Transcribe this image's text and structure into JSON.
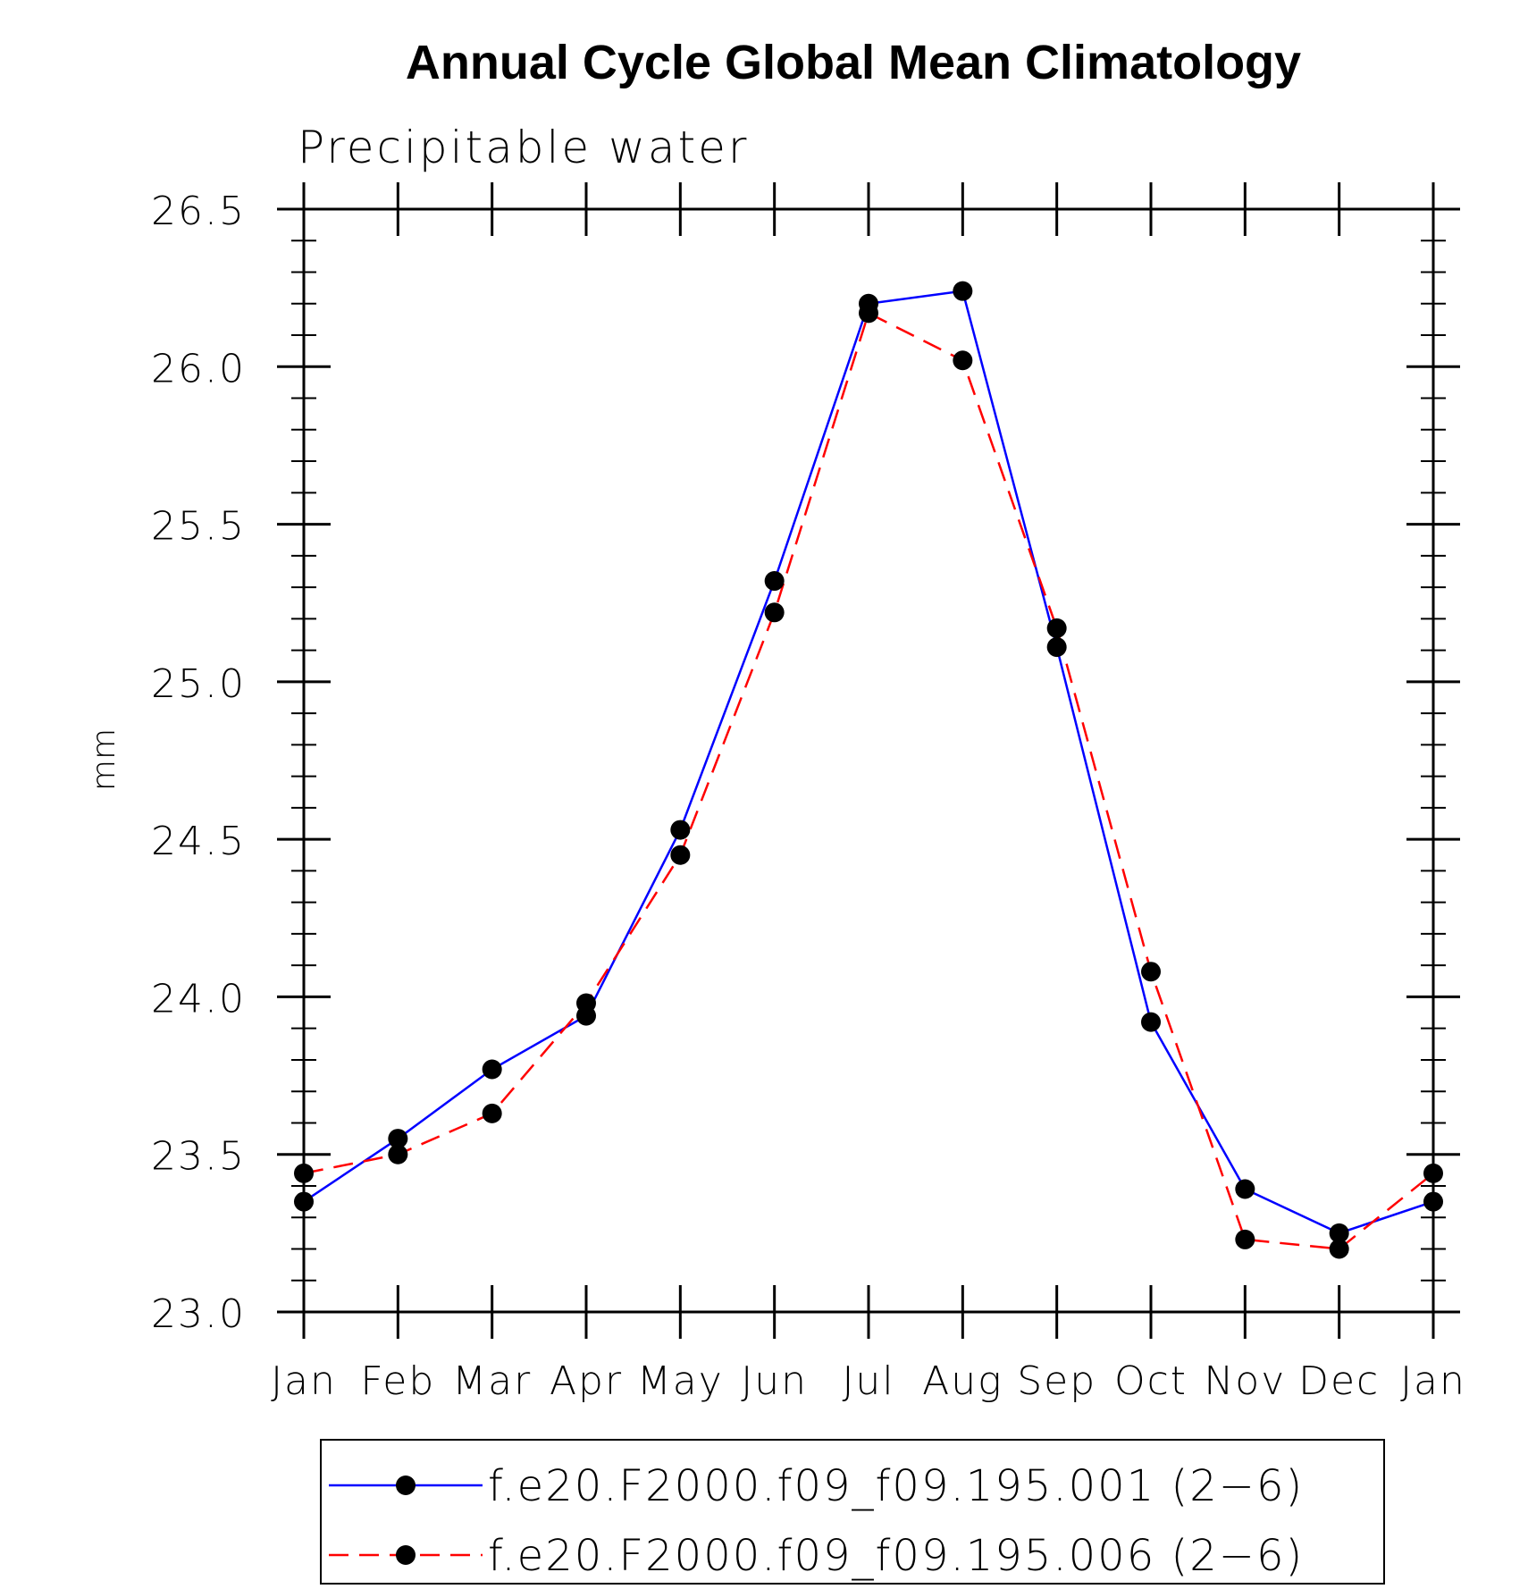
{
  "chart_data": {
    "type": "line",
    "title": "Annual Cycle Global Mean Climatology",
    "subtitle": "Precipitable water",
    "ylabel": "mm",
    "xlabel": "",
    "categories": [
      "Jan",
      "Feb",
      "Mar",
      "Apr",
      "May",
      "Jun",
      "Jul",
      "Aug",
      "Sep",
      "Oct",
      "Nov",
      "Dec",
      "Jan"
    ],
    "ylim": [
      23.0,
      26.5
    ],
    "yticks": [
      "23.0",
      "23.5",
      "24.0",
      "24.5",
      "25.0",
      "25.5",
      "26.0",
      "26.5"
    ],
    "grid": false,
    "legend_position": "bottom",
    "series": [
      {
        "name": "f.e20.F2000.f09_f09.195.001 (2−6)",
        "color": "#0000ff",
        "line_style": "solid",
        "marker": "filled-circle",
        "values": [
          23.35,
          23.55,
          23.77,
          23.94,
          24.53,
          25.32,
          26.2,
          26.24,
          25.11,
          23.92,
          23.39,
          23.25,
          23.35
        ]
      },
      {
        "name": "f.e20.F2000.f09_f09.195.006 (2−6)",
        "color": "#ff0000",
        "line_style": "dashed",
        "marker": "filled-circle",
        "values": [
          23.44,
          23.5,
          23.63,
          23.98,
          24.45,
          25.22,
          26.17,
          26.02,
          25.17,
          24.08,
          23.23,
          23.2,
          23.44
        ]
      }
    ]
  }
}
